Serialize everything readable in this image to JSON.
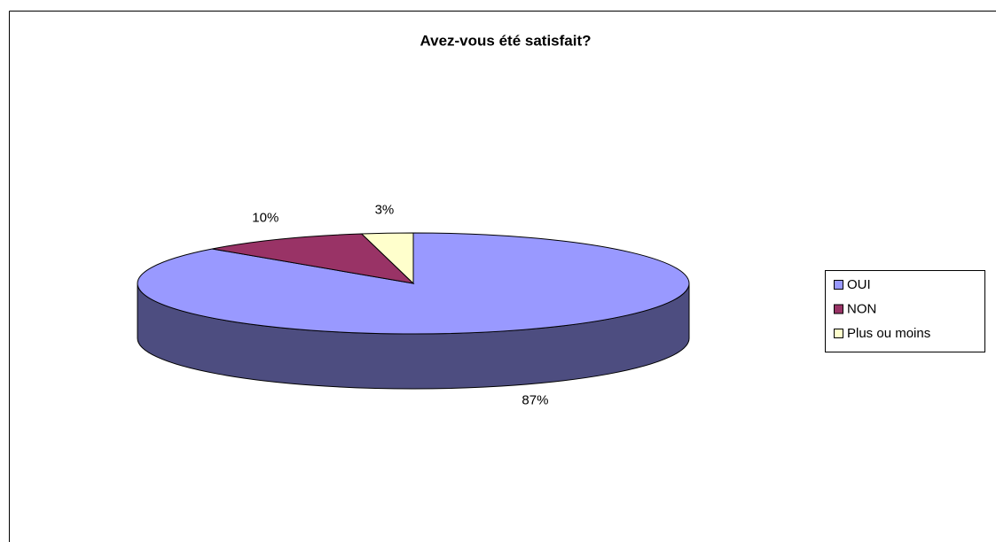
{
  "chart_data": {
    "type": "pie",
    "title": "Avez-vous été satisfait?",
    "categories": [
      "OUI",
      "NON",
      "Plus ou moins"
    ],
    "values": [
      87,
      10,
      3
    ],
    "value_labels": [
      "87%",
      "10%",
      "3%"
    ],
    "colors": [
      "#9999ff",
      "#993366",
      "#ffffcc"
    ],
    "legend": "right"
  }
}
